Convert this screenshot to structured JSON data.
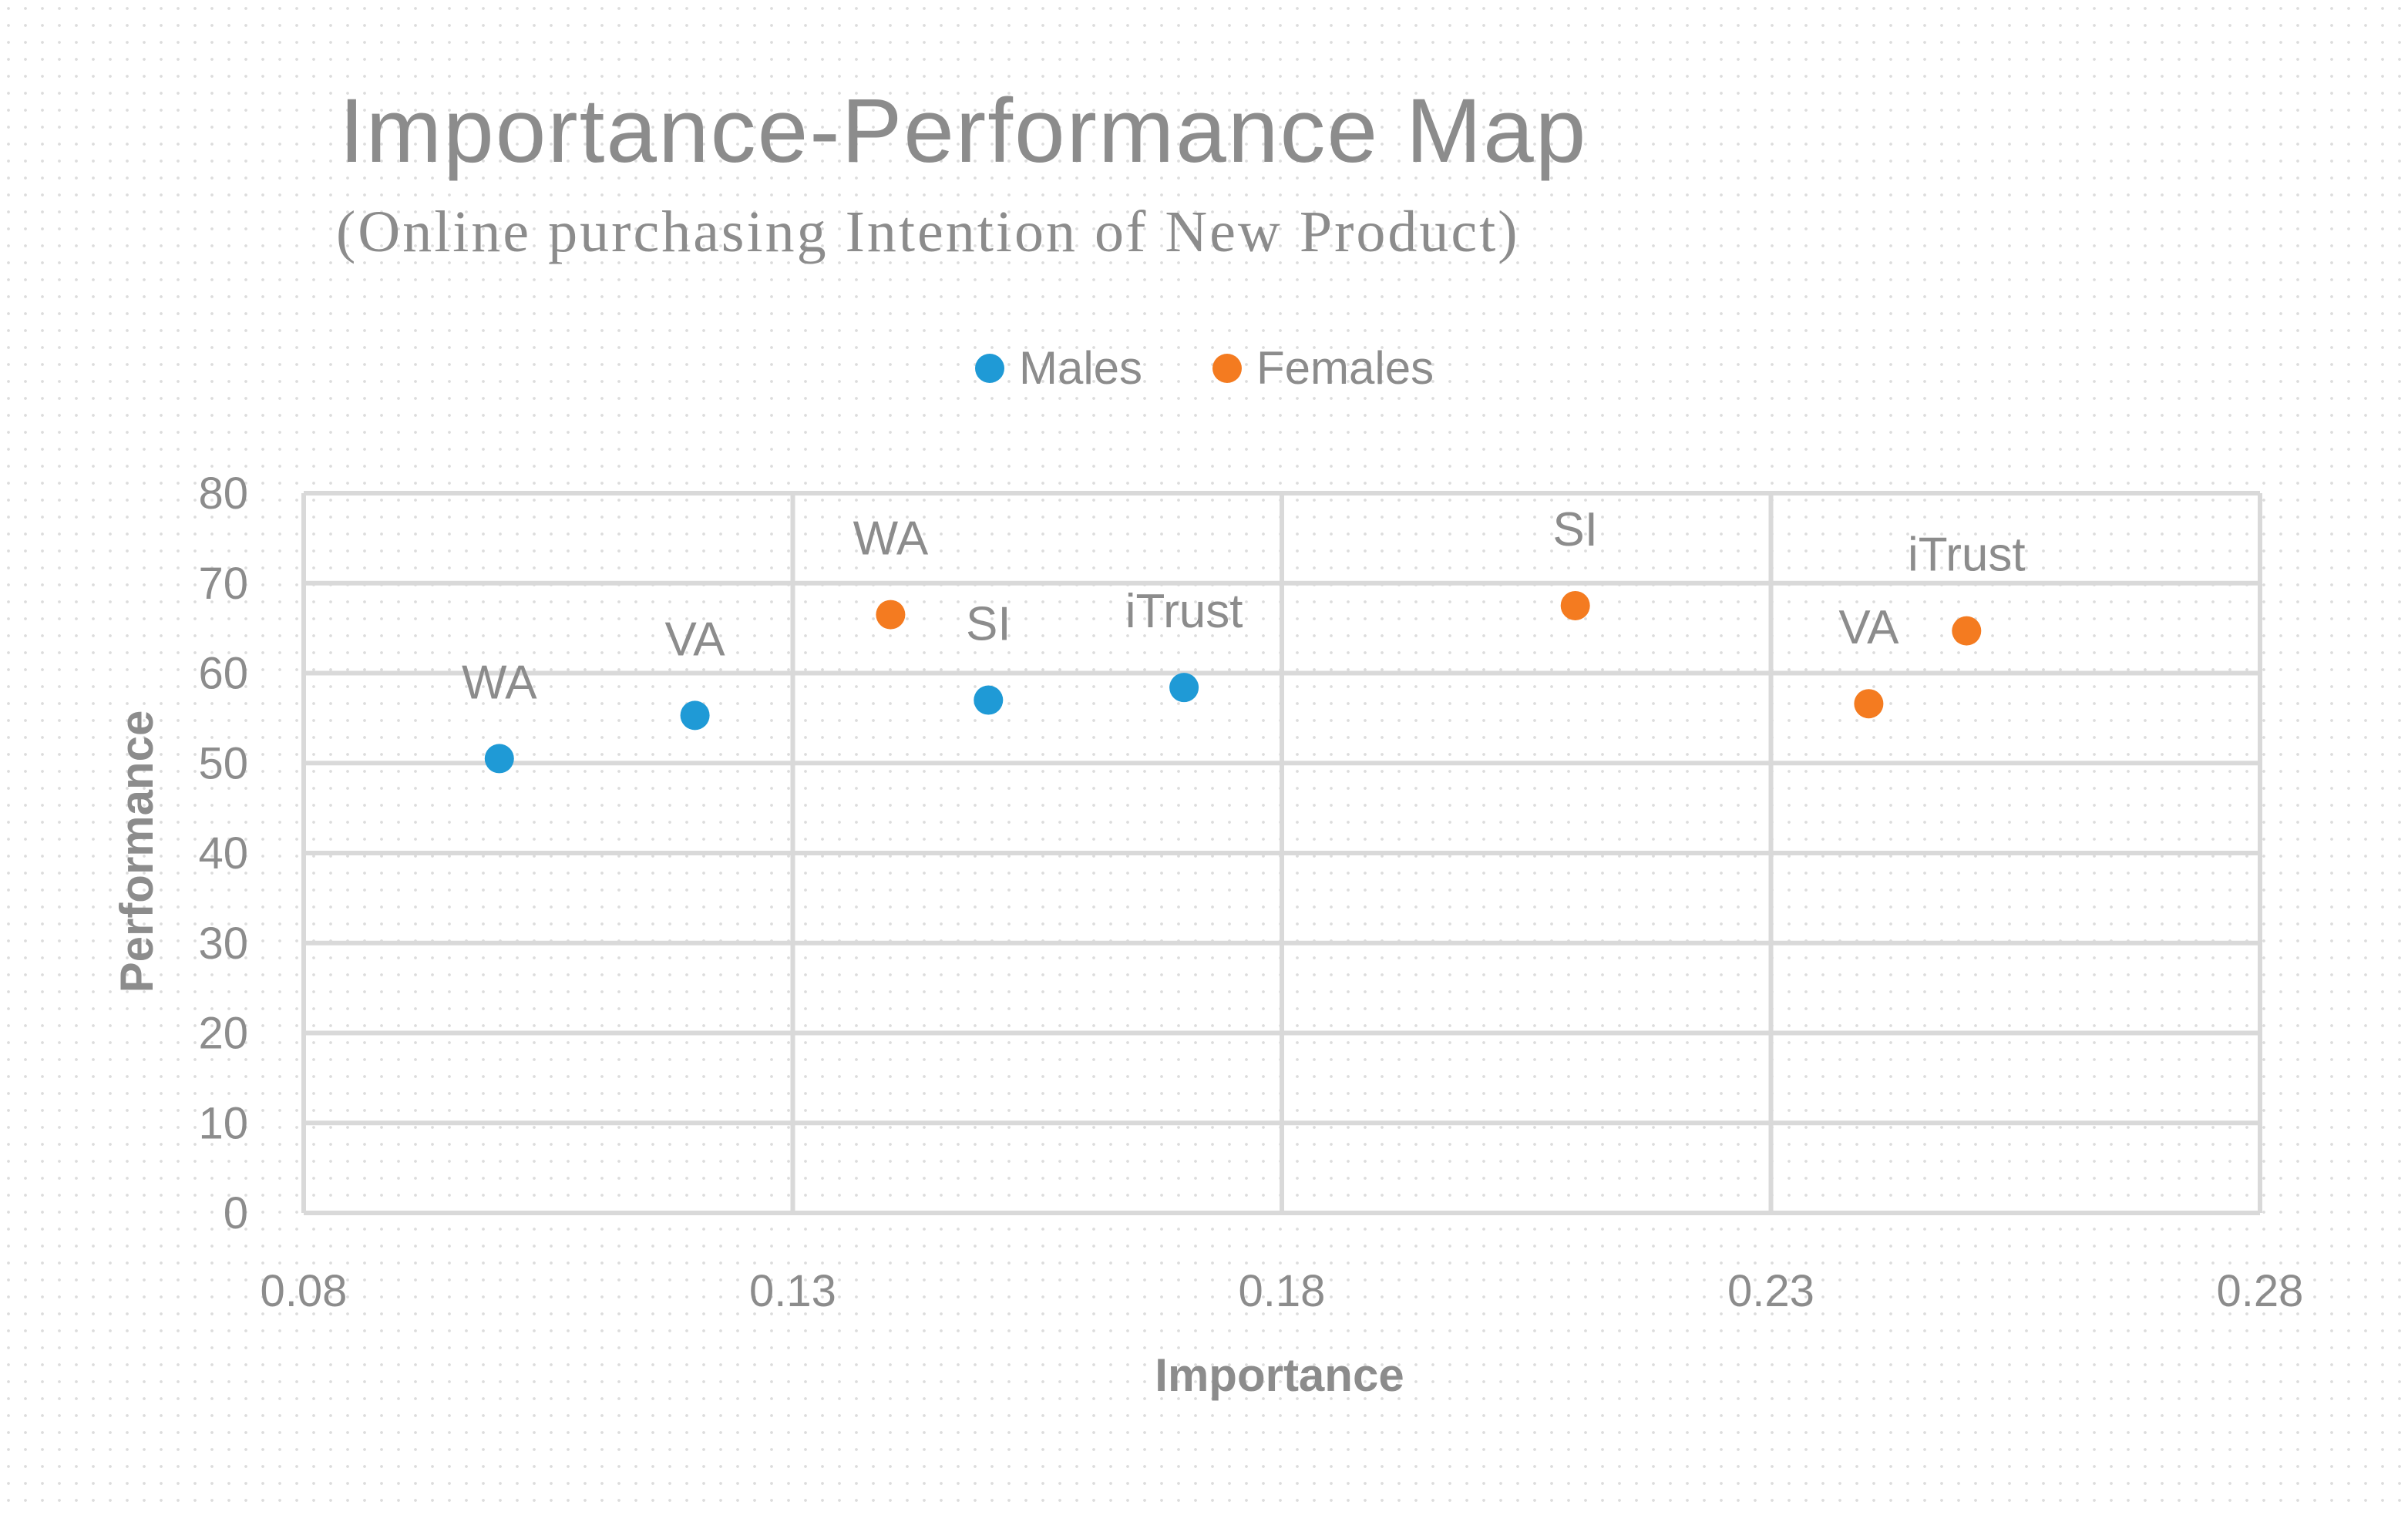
{
  "chart_data": {
    "type": "scatter",
    "title": "Importance-Performance Map",
    "subtitle": "(Online purchasing Intention of New Product)",
    "xlabel": "Importance",
    "ylabel": "Performance",
    "xlim": [
      0.08,
      0.28
    ],
    "ylim": [
      0,
      80
    ],
    "x_ticks": [
      "0.08",
      "0.13",
      "0.18",
      "0.23",
      "0.28"
    ],
    "y_ticks": [
      "0",
      "10",
      "20",
      "30",
      "40",
      "50",
      "60",
      "70",
      "80"
    ],
    "grid": true,
    "legend_position": "top",
    "series": [
      {
        "name": "Males",
        "color": "#1f9ad6",
        "points": [
          {
            "label": "WA",
            "x": 0.1,
            "y": 50.5
          },
          {
            "label": "VA",
            "x": 0.12,
            "y": 55.3
          },
          {
            "label": "SI",
            "x": 0.15,
            "y": 57.0
          },
          {
            "label": "iTrust",
            "x": 0.17,
            "y": 58.4
          }
        ]
      },
      {
        "name": "Females",
        "color": "#f47b20",
        "points": [
          {
            "label": "WA",
            "x": 0.14,
            "y": 66.5
          },
          {
            "label": "SI",
            "x": 0.21,
            "y": 67.5
          },
          {
            "label": "VA",
            "x": 0.24,
            "y": 56.6
          },
          {
            "label": "iTrust",
            "x": 0.25,
            "y": 64.7
          }
        ]
      }
    ]
  }
}
